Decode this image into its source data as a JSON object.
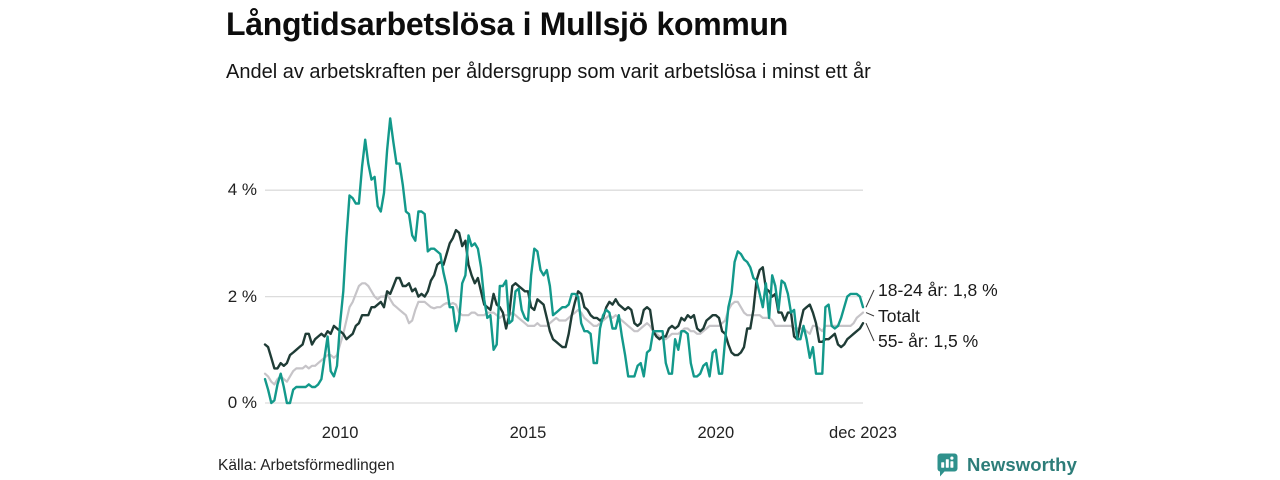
{
  "header": {
    "title": "Långtidsarbetslösa i Mullsjö kommun",
    "subtitle": "Andel av arbetskraften per åldersgrupp som varit arbetslösa i minst ett år"
  },
  "footer": {
    "source": "Källa: Arbetsförmedlingen",
    "brand": "Newsworthy",
    "brand_color": "#2d7d79",
    "brand_icon_color": "#2f918c"
  },
  "chart_data": {
    "type": "line",
    "title": "Långtidsarbetslösa i Mullsjö kommun",
    "subtitle": "Andel av arbetskraften per åldersgrupp som varit arbetslösa i minst ett år",
    "x_start": "2008-01",
    "x_end": "2023-12",
    "frequency": "monthly",
    "grid": true,
    "ylim": [
      0,
      5.6
    ],
    "unit": "%",
    "y_ticks": [
      {
        "label": "0 %",
        "value": 0
      },
      {
        "label": "2 %",
        "value": 2
      },
      {
        "label": "4 %",
        "value": 4
      }
    ],
    "x_ticks": [
      {
        "label": "2010",
        "month_index": 24
      },
      {
        "label": "2015",
        "month_index": 84
      },
      {
        "label": "2020",
        "month_index": 144
      },
      {
        "label": "dec 2023",
        "month_index": 191
      }
    ],
    "series": [
      {
        "name": "Totalt",
        "end_label": "Totalt",
        "color": "#c6c4c8",
        "width": 2.2,
        "values": [
          0.55,
          0.5,
          0.4,
          0.35,
          0.45,
          0.5,
          0.45,
          0.4,
          0.5,
          0.6,
          0.65,
          0.65,
          0.65,
          0.7,
          0.65,
          0.7,
          0.7,
          0.75,
          0.8,
          0.85,
          0.9,
          0.9,
          0.85,
          0.9,
          1.1,
          1.3,
          1.55,
          1.8,
          1.9,
          2.05,
          2.2,
          2.25,
          2.25,
          2.2,
          2.1,
          2.0,
          1.95,
          2.0,
          2.0,
          2.05,
          1.95,
          1.85,
          1.8,
          1.75,
          1.7,
          1.65,
          1.5,
          1.55,
          1.75,
          1.9,
          1.9,
          1.9,
          1.85,
          1.8,
          1.78,
          1.8,
          1.8,
          1.85,
          1.88,
          1.85,
          1.88,
          1.85,
          1.7,
          1.65,
          1.65,
          1.65,
          1.7,
          1.7,
          1.65,
          1.65,
          1.65,
          1.7,
          1.7,
          1.7,
          1.65,
          1.6,
          1.65,
          1.65,
          1.65,
          1.7,
          1.65,
          1.6,
          1.55,
          1.5,
          1.45,
          1.45,
          1.45,
          1.5,
          1.45,
          1.45,
          1.45,
          1.5,
          1.55,
          1.6,
          1.55,
          1.55,
          1.55,
          1.6,
          1.65,
          1.7,
          1.75,
          1.7,
          1.6,
          1.55,
          1.5,
          1.45,
          1.45,
          1.5,
          1.55,
          1.6,
          1.65,
          1.6,
          1.65,
          1.6,
          1.55,
          1.5,
          1.45,
          1.4,
          1.35,
          1.35,
          1.4,
          1.45,
          1.5,
          1.45,
          1.35,
          1.3,
          1.25,
          1.2,
          1.2,
          1.25,
          1.3,
          1.3,
          1.3,
          1.35,
          1.4,
          1.4,
          1.35,
          1.35,
          1.3,
          1.3,
          1.35,
          1.4,
          1.45,
          1.45,
          1.45,
          1.45,
          1.5,
          1.55,
          1.75,
          1.85,
          1.9,
          1.9,
          1.8,
          1.7,
          1.65,
          1.65,
          1.65,
          1.65,
          1.65,
          1.6,
          1.6,
          1.6,
          1.55,
          1.45,
          1.45,
          1.45,
          1.45,
          1.45,
          1.45,
          1.4,
          1.4,
          1.4,
          1.4,
          1.35,
          1.3,
          1.45,
          1.45,
          1.4,
          1.35,
          1.45,
          1.45,
          1.45,
          1.45,
          1.45,
          1.45,
          1.45,
          1.45,
          1.45,
          1.5,
          1.6,
          1.65,
          1.7
        ]
      },
      {
        "name": "55- år",
        "end_label": "55- år: 1,5 %",
        "color": "#1f3c36",
        "width": 2.4,
        "values": [
          1.1,
          1.05,
          0.85,
          0.65,
          0.65,
          0.75,
          0.7,
          0.75,
          0.9,
          0.95,
          1.0,
          1.05,
          1.1,
          1.3,
          1.3,
          1.1,
          1.2,
          1.25,
          1.3,
          1.25,
          1.35,
          1.3,
          1.45,
          1.4,
          1.35,
          1.3,
          1.2,
          1.25,
          1.3,
          1.45,
          1.5,
          1.65,
          1.65,
          1.65,
          1.8,
          1.8,
          1.85,
          1.9,
          1.8,
          2.1,
          2.05,
          2.2,
          2.35,
          2.35,
          2.2,
          2.2,
          2.25,
          2.1,
          2.15,
          2.0,
          2.05,
          2.0,
          2.1,
          2.3,
          2.4,
          2.6,
          2.65,
          2.6,
          2.8,
          3.0,
          3.1,
          3.25,
          3.2,
          2.95,
          3.05,
          2.6,
          2.4,
          2.25,
          2.35,
          2.1,
          1.85,
          1.8,
          1.75,
          2.05,
          1.85,
          1.8,
          1.7,
          1.4,
          1.65,
          2.2,
          2.25,
          2.2,
          2.15,
          2.1,
          2.1,
          1.8,
          1.75,
          1.95,
          1.9,
          1.85,
          1.6,
          1.35,
          1.2,
          1.15,
          1.1,
          1.05,
          1.05,
          1.3,
          1.65,
          1.9,
          2.1,
          2.05,
          1.8,
          1.75,
          1.65,
          1.6,
          1.6,
          1.55,
          1.6,
          1.8,
          1.9,
          1.85,
          1.95,
          1.85,
          1.8,
          1.75,
          1.8,
          1.75,
          1.5,
          1.45,
          1.5,
          1.75,
          1.8,
          1.75,
          1.35,
          1.25,
          1.2,
          1.25,
          1.25,
          1.4,
          1.45,
          1.4,
          1.45,
          1.6,
          1.55,
          1.65,
          1.6,
          1.65,
          1.4,
          1.35,
          1.4,
          1.55,
          1.6,
          1.65,
          1.65,
          1.6,
          1.35,
          1.3,
          1.1,
          0.95,
          0.9,
          0.9,
          0.95,
          1.05,
          1.4,
          1.4,
          1.75,
          2.3,
          2.5,
          2.55,
          2.15,
          2.1,
          2.0,
          2.05,
          1.7,
          1.7,
          1.55,
          1.7,
          1.7,
          1.25,
          1.2,
          1.5,
          1.75,
          1.8,
          1.85,
          1.7,
          1.5,
          1.15,
          1.15,
          1.2,
          1.2,
          1.25,
          1.3,
          1.1,
          1.05,
          1.1,
          1.2,
          1.25,
          1.3,
          1.35,
          1.4,
          1.5
        ]
      },
      {
        "name": "18-24 år",
        "end_label": "18-24 år: 1,8 %",
        "color": "#13998b",
        "width": 2.4,
        "values": [
          0.45,
          0.25,
          0.0,
          0.05,
          0.35,
          0.55,
          0.3,
          0.0,
          0.0,
          0.25,
          0.3,
          0.3,
          0.3,
          0.3,
          0.35,
          0.3,
          0.3,
          0.35,
          0.45,
          0.85,
          1.25,
          0.6,
          0.5,
          0.7,
          1.5,
          2.1,
          3.1,
          3.9,
          3.85,
          3.75,
          3.75,
          4.45,
          4.95,
          4.5,
          4.2,
          4.25,
          3.7,
          3.6,
          3.95,
          4.75,
          5.35,
          4.9,
          4.5,
          4.5,
          4.1,
          3.6,
          3.55,
          3.15,
          3.05,
          3.6,
          3.6,
          3.55,
          2.85,
          2.9,
          2.9,
          2.85,
          2.8,
          2.45,
          2.2,
          1.8,
          1.8,
          1.35,
          1.55,
          2.25,
          2.4,
          3.15,
          2.95,
          3.0,
          2.9,
          2.55,
          1.95,
          1.6,
          1.65,
          1.0,
          1.1,
          2.2,
          2.2,
          2.3,
          1.5,
          1.55,
          2.1,
          2.15,
          1.75,
          1.6,
          1.55,
          2.4,
          2.9,
          2.85,
          2.5,
          2.4,
          2.5,
          2.2,
          1.65,
          1.7,
          1.75,
          1.8,
          1.8,
          1.85,
          2.05,
          2.05,
          2.0,
          1.5,
          1.35,
          1.35,
          1.3,
          0.75,
          0.75,
          1.4,
          1.65,
          1.75,
          1.7,
          1.4,
          1.4,
          1.65,
          1.25,
          0.9,
          0.5,
          0.5,
          0.5,
          0.7,
          0.75,
          0.5,
          0.95,
          1.0,
          1.35,
          1.35,
          1.35,
          1.35,
          0.75,
          0.55,
          0.55,
          1.2,
          1.0,
          1.35,
          1.35,
          1.3,
          0.75,
          0.5,
          0.5,
          0.55,
          0.7,
          0.75,
          0.5,
          0.95,
          1.0,
          0.55,
          0.55,
          1.2,
          1.8,
          2.05,
          2.65,
          2.85,
          2.8,
          2.7,
          2.65,
          2.55,
          2.35,
          2.3,
          2.05,
          1.8,
          2.25,
          1.6,
          2.4,
          2.2,
          1.75,
          2.3,
          2.25,
          2.05,
          1.7,
          1.75,
          1.2,
          1.2,
          1.45,
          1.2,
          0.85,
          1.05,
          0.55,
          0.55,
          0.55,
          1.8,
          1.85,
          1.45,
          1.4,
          1.45,
          1.6,
          1.8,
          2.0,
          2.05,
          2.05,
          2.05,
          2.0,
          1.8
        ]
      }
    ],
    "annotations": [
      "18-24 år: 1,8 %",
      "Totalt",
      "55- år: 1,5 %"
    ],
    "legend_position": "right-end-labels",
    "gridline_color": "#dcdcdc"
  }
}
